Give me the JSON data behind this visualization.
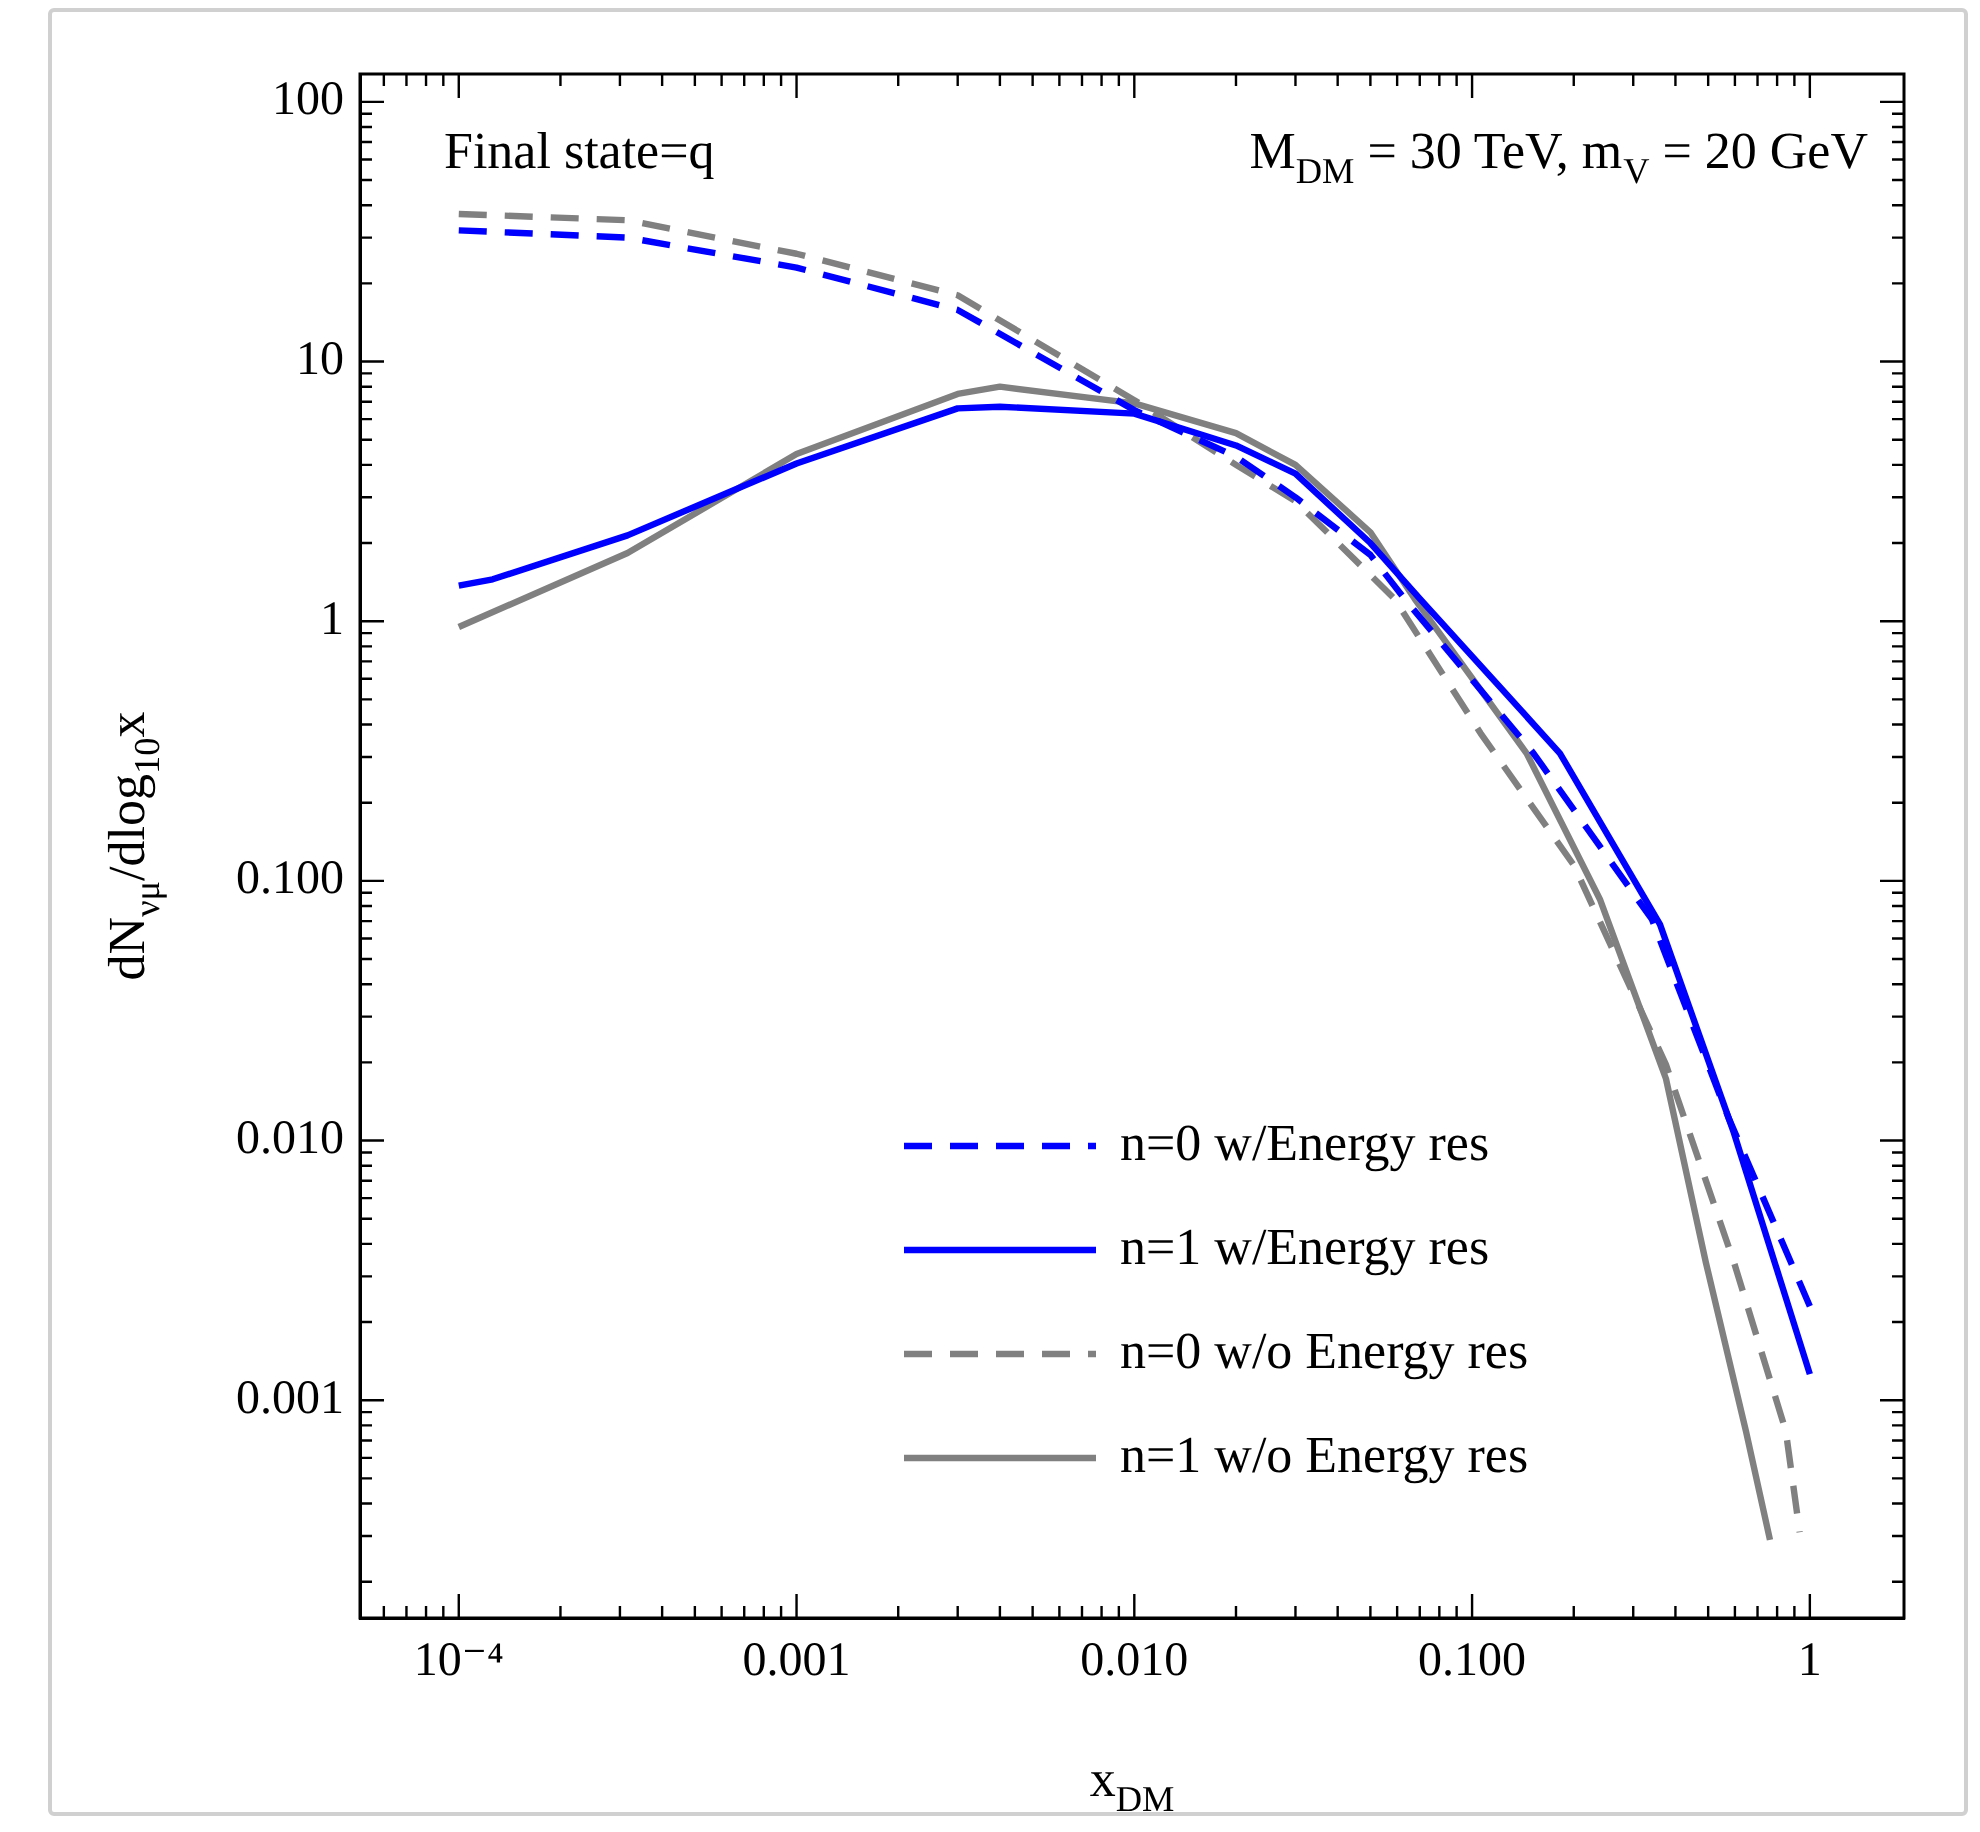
{
  "chart_data": {
    "type": "line",
    "xlabel": "x$_{DM}$",
    "ylabel": "dN$_{νμ}$/dlog$_{10}$x",
    "annotations": [
      "Final state=q",
      "M$_{DM}$ = 30 TeV, m$_{V}$ = 20 GeV"
    ],
    "log": "xy",
    "xlim": [
      5.1e-05,
      1.9
    ],
    "ylim": [
      0.000145,
      128
    ],
    "xticks": [
      {
        "value": 0.0001,
        "label": "10⁻⁴"
      },
      0.001,
      {
        "value": 0.01,
        "label": "0.010"
      },
      {
        "value": 0.1,
        "label": "0.100"
      },
      1
    ],
    "yticks": [
      {
        "value": 0.001,
        "label": "0.001"
      },
      {
        "value": 0.01,
        "label": "0.010"
      },
      {
        "value": 0.1,
        "label": "0.100"
      },
      1,
      10,
      100
    ],
    "grid": false,
    "legend": "bottom right",
    "marker": "none",
    "series": [
      {
        "name": "n=0 w/Energy res",
        "color": "#0000ff",
        "line_style": "dashed",
        "x": [
          0.0001,
          0.000316,
          0.001,
          0.003,
          0.01,
          0.02,
          0.03,
          0.05,
          0.0631,
          0.152,
          0.341,
          0.575,
          1
        ],
        "values": [
          32,
          30,
          23,
          15.8,
          6.5,
          4.3,
          3.0,
          1.8,
          1.22,
          0.31,
          0.071,
          0.0122,
          0.0023
        ]
      },
      {
        "name": "n=1 w/Energy res",
        "color": "#0000ff",
        "line_style": "solid",
        "x": [
          0.0001,
          0.000126,
          0.000316,
          0.001,
          0.003,
          0.004,
          0.01,
          0.02,
          0.03,
          0.05,
          0.0701,
          0.182,
          0.36,
          0.596,
          1
        ],
        "values": [
          1.37,
          1.45,
          2.14,
          4.05,
          6.6,
          6.7,
          6.3,
          4.75,
          3.7,
          2.0,
          1.22,
          0.31,
          0.068,
          0.0107,
          0.00126
        ]
      },
      {
        "name": "n=0 w/o Energy res",
        "color": "#808080",
        "line_style": "dashed",
        "x": [
          0.0001,
          0.000316,
          0.001,
          0.003,
          0.01,
          0.02,
          0.03,
          0.0589,
          0.106,
          0.2,
          0.375,
          0.596,
          0.849,
          0.933
        ],
        "values": [
          37,
          35,
          26,
          18,
          7.1,
          4.0,
          2.9,
          1.22,
          0.37,
          0.115,
          0.0196,
          0.0034,
          0.00076,
          0.00031
        ]
      },
      {
        "name": "n=1 w/o Energy res",
        "color": "#808080",
        "line_style": "solid",
        "x": [
          0.0001,
          0.000316,
          0.001,
          0.003,
          0.004,
          0.01,
          0.02,
          0.03,
          0.05,
          0.0676,
          0.145,
          0.239,
          0.375,
          0.492,
          0.647,
          0.762
        ],
        "values": [
          0.95,
          1.83,
          4.4,
          7.5,
          8.0,
          6.9,
          5.3,
          4.0,
          2.2,
          1.22,
          0.31,
          0.085,
          0.0173,
          0.0034,
          0.00076,
          0.00029
        ]
      }
    ]
  }
}
